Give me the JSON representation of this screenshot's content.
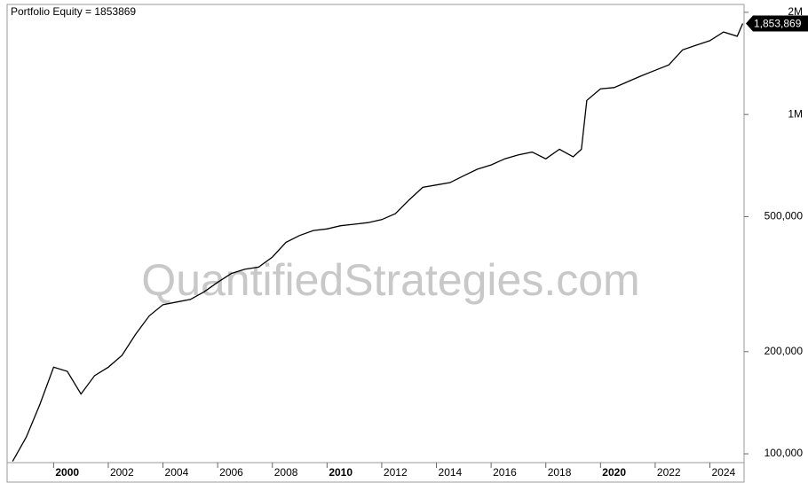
{
  "chart_data": {
    "type": "line",
    "title": "Portfolio Equity = 1853869",
    "watermark": "QuantifiedStrategies.com",
    "end_label": "1,853,869",
    "log_scale": true,
    "color": "#000000",
    "x": [
      1998.5,
      1999.0,
      1999.5,
      2000.0,
      2000.5,
      2001.0,
      2001.5,
      2002.0,
      2002.5,
      2003.0,
      2003.5,
      2004.0,
      2004.5,
      2005.0,
      2005.5,
      2006.0,
      2006.5,
      2007.0,
      2007.5,
      2008.0,
      2008.5,
      2009.0,
      2009.5,
      2010.0,
      2010.5,
      2011.0,
      2011.5,
      2012.0,
      2012.5,
      2013.0,
      2013.5,
      2014.0,
      2014.5,
      2015.0,
      2015.5,
      2016.0,
      2016.5,
      2017.0,
      2017.5,
      2018.0,
      2018.5,
      2019.0,
      2019.3,
      2019.5,
      2020.0,
      2020.5,
      2021.0,
      2021.5,
      2022.0,
      2022.5,
      2023.0,
      2023.5,
      2024.0,
      2024.5,
      2025.0,
      2025.2
    ],
    "values": [
      95000,
      112000,
      140000,
      180000,
      175000,
      150000,
      170000,
      180000,
      195000,
      225000,
      255000,
      275000,
      280000,
      285000,
      300000,
      320000,
      340000,
      350000,
      355000,
      380000,
      420000,
      440000,
      455000,
      460000,
      470000,
      475000,
      480000,
      490000,
      510000,
      560000,
      610000,
      620000,
      630000,
      660000,
      690000,
      710000,
      740000,
      760000,
      775000,
      740000,
      790000,
      750000,
      790000,
      1100000,
      1190000,
      1200000,
      1250000,
      1300000,
      1350000,
      1400000,
      1550000,
      1600000,
      1650000,
      1750000,
      1700000,
      1853869
    ],
    "xlim": [
      1998.3,
      2025.25
    ],
    "xticks": [
      2000,
      2002,
      2004,
      2006,
      2008,
      2010,
      2012,
      2014,
      2016,
      2018,
      2020,
      2022,
      2024
    ],
    "ylim": [
      94200,
      2110000
    ],
    "yticks": [
      {
        "value": 100000,
        "label": "100,000"
      },
      {
        "value": 200000,
        "label": "200,000"
      },
      {
        "value": 500000,
        "label": "500,000"
      },
      {
        "value": 1000000,
        "label": "1M"
      },
      {
        "value": 2000000,
        "label": "2M"
      }
    ]
  }
}
